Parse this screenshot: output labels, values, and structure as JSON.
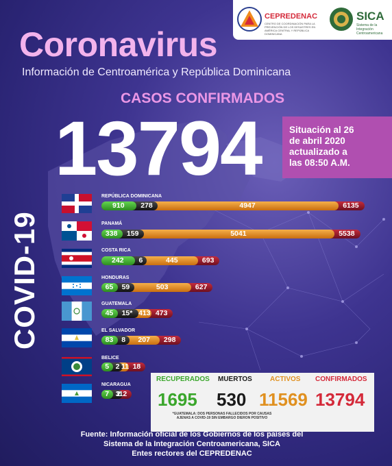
{
  "header": {
    "logo_left_name": "CEPREDENAC",
    "logo_left_sub": "CENTRO DE COORDINACIÓN PARA LA PREVENCIÓN DE LOS DESASTRES EN AMÉRICA CENTRAL Y REPÚBLICA DOMINICANA",
    "logo_right_name": "SICA",
    "logo_right_sub": "Sistema de la Integración Centroamericana"
  },
  "title": "Coronavirus",
  "subtitle": "Información de Centroamérica y República Dominicana",
  "casos_label": "CASOS CONFIRMADOS",
  "total_cases": "13794",
  "situation": [
    "Situación al 26",
    "de abril 2020",
    "actualizado a",
    "las 08:50 A.M."
  ],
  "covid_label": "COVID-19",
  "countries": [
    {
      "name": "REPÚBLICA DOMINICANA",
      "recovered": 910,
      "deaths": 278,
      "active": 4947,
      "confirmed": 6135,
      "labels": [
        "910",
        "278",
        "4947",
        "6135"
      ]
    },
    {
      "name": "PANAMÁ",
      "recovered": 338,
      "deaths": 159,
      "active": 5041,
      "confirmed": 5538,
      "labels": [
        "338",
        "159",
        "5041",
        "5538"
      ]
    },
    {
      "name": "COSTA RICA",
      "recovered": 242,
      "deaths": 6,
      "active": 445,
      "confirmed": 693,
      "labels": [
        "242",
        "6",
        "445",
        "693"
      ]
    },
    {
      "name": "HONDURAS",
      "recovered": 65,
      "deaths": 59,
      "active": 503,
      "confirmed": 627,
      "labels": [
        "65",
        "59",
        "503",
        "627"
      ]
    },
    {
      "name": "GUATEMALA",
      "recovered": 45,
      "deaths": 15,
      "active": 413,
      "confirmed": 473,
      "labels": [
        "45",
        "15*",
        "413",
        "473"
      ]
    },
    {
      "name": "EL SALVADOR",
      "recovered": 83,
      "deaths": 8,
      "active": 207,
      "confirmed": 298,
      "labels": [
        "83",
        "8",
        "207",
        "298"
      ]
    },
    {
      "name": "BELICE",
      "recovered": 5,
      "deaths": 2,
      "active": 11,
      "confirmed": 18,
      "labels": [
        "5",
        "2",
        "11",
        "18"
      ]
    },
    {
      "name": "NICARAGUA",
      "recovered": 7,
      "deaths": 3,
      "active": 2,
      "confirmed": 12,
      "labels": [
        "7",
        "3",
        "2",
        "12"
      ]
    }
  ],
  "totals": {
    "headers": [
      "RECUPERADOS",
      "MUERTOS",
      "ACTIVOS",
      "CONFIRMADOS"
    ],
    "values": [
      "1695",
      "530",
      "11569",
      "13794"
    ],
    "note": "*GUATEMALA: DOS PERSONAS FALLECIDOS POR CAUSAS AJENAS A COVID-19 SIN EMBARGO DIERON POSITIVO"
  },
  "source": [
    "Fuente: Información oficial de los Gobiernos de los países del",
    "Sistema de la Integración Centroamericana, SICA",
    "Entes rectores del CEPREDENAC"
  ],
  "colors": {
    "recovered": "#3aa62b",
    "deaths": "#1a1a1a",
    "active": "#e0901f",
    "confirmed": "#d42a3a",
    "title": "#f3b3ec",
    "situation_bg": "#b04fb0"
  }
}
